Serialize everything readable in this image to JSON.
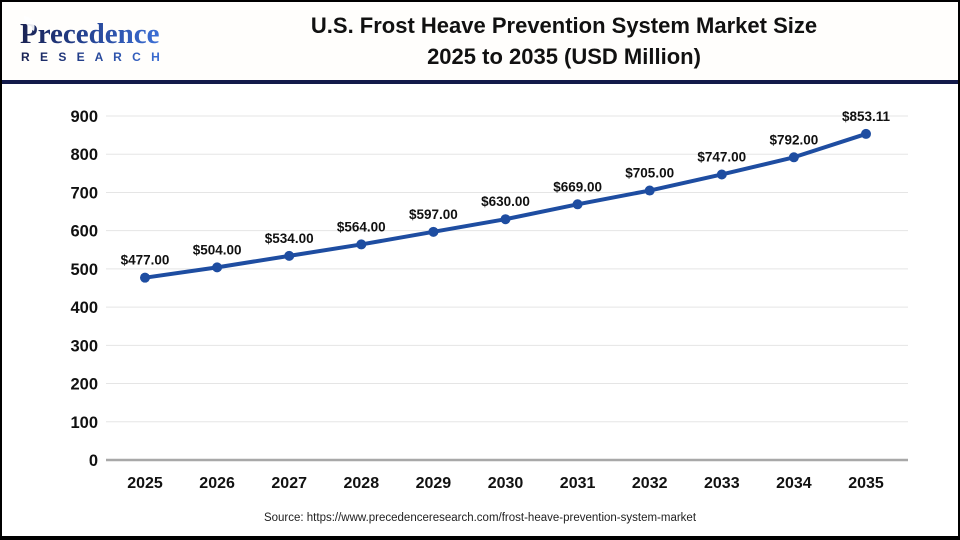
{
  "header": {
    "logo_name": "Precedence",
    "logo_subname": "R E S E A R C H",
    "title_line1": "U.S. Frost Heave Prevention System Market Size",
    "title_line2": "2025 to 2035 (USD Million)"
  },
  "footer": {
    "source": "Source: https://www.precedenceresearch.com/frost-heave-prevention-system-market"
  },
  "colors": {
    "line": "#1E4DA1",
    "marker": "#1E4DA1",
    "grid": "#E5E5E5",
    "axis_zero": "#A8A8A8",
    "tick_text": "#111111",
    "value_label": "#111111",
    "separator": "#131A4A",
    "logo_dark": "#1B2353",
    "logo_light": "#3C6FD6"
  },
  "chart_data": {
    "type": "line",
    "title": "U.S. Frost Heave Prevention System Market Size 2025 to 2035 (USD Million)",
    "categories": [
      "2025",
      "2026",
      "2027",
      "2028",
      "2029",
      "2030",
      "2031",
      "2032",
      "2033",
      "2034",
      "2035"
    ],
    "values": [
      477,
      504,
      534,
      564,
      597,
      630,
      669,
      705,
      747,
      792,
      853.11
    ],
    "value_labels": [
      "$477.00",
      "$504.00",
      "$534.00",
      "$564.00",
      "$597.00",
      "$630.00",
      "$669.00",
      "$705.00",
      "$747.00",
      "$792.00",
      "$853.11"
    ],
    "xlabel": "",
    "ylabel": "",
    "ylim": [
      0,
      900
    ],
    "ytick_interval": 100,
    "ytick_labels": [
      "0",
      "100",
      "200",
      "300",
      "400",
      "500",
      "600",
      "700",
      "800",
      "900"
    ],
    "grid": true,
    "legend": false,
    "marker": "circle",
    "series_name": "U.S. Frost Heave Prevention System Market Size (USD Million)"
  }
}
